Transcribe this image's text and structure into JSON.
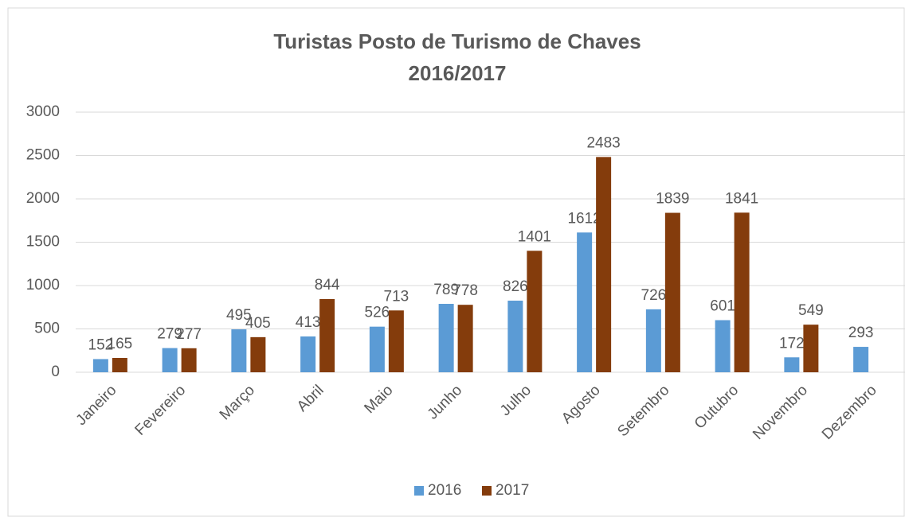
{
  "chart_data": {
    "type": "bar",
    "title": "Turistas Posto de Turismo de Chaves",
    "subtitle": "2016/2017",
    "categories": [
      "Janeiro",
      "Fevereiro",
      "Março",
      "Abril",
      "Maio",
      "Junho",
      "Julho",
      "Agosto",
      "Setembro",
      "Outubro",
      "Novembro",
      "Dezembro"
    ],
    "series": [
      {
        "name": "2016",
        "color": "#5b9bd5",
        "values": [
          152,
          279,
          495,
          413,
          526,
          789,
          826,
          1612,
          726,
          601,
          172,
          293
        ]
      },
      {
        "name": "2017",
        "color": "#843c0c",
        "values": [
          165,
          277,
          405,
          844,
          713,
          778,
          1401,
          2483,
          1839,
          1841,
          549,
          null
        ]
      }
    ],
    "ylim": [
      0,
      3000
    ],
    "yticks": [
      0,
      500,
      1000,
      1500,
      2000,
      2500,
      3000
    ],
    "grid": true,
    "legend": "bottom"
  }
}
